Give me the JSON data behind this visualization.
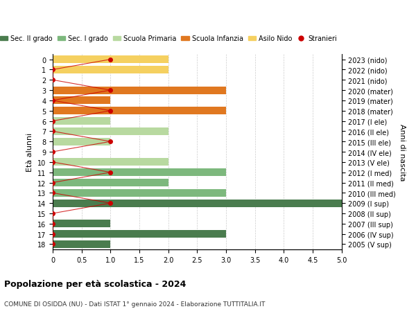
{
  "ages": [
    18,
    17,
    16,
    15,
    14,
    13,
    12,
    11,
    10,
    9,
    8,
    7,
    6,
    5,
    4,
    3,
    2,
    1,
    0
  ],
  "years": [
    "2005 (V sup)",
    "2006 (IV sup)",
    "2007 (III sup)",
    "2008 (II sup)",
    "2009 (I sup)",
    "2010 (III med)",
    "2011 (II med)",
    "2012 (I med)",
    "2013 (V ele)",
    "2014 (IV ele)",
    "2015 (III ele)",
    "2016 (II ele)",
    "2017 (I ele)",
    "2018 (mater)",
    "2019 (mater)",
    "2020 (mater)",
    "2021 (nido)",
    "2022 (nido)",
    "2023 (nido)"
  ],
  "bar_values": [
    1,
    3,
    1,
    0,
    5,
    3,
    2,
    3,
    2,
    0,
    1,
    2,
    1,
    3,
    1,
    3,
    0,
    2,
    2
  ],
  "bar_colors": [
    "#4a7c4e",
    "#4a7c4e",
    "#4a7c4e",
    "#4a7c4e",
    "#4a7c4e",
    "#7db87d",
    "#7db87d",
    "#7db87d",
    "#b8d9a0",
    "#b8d9a0",
    "#b8d9a0",
    "#b8d9a0",
    "#b8d9a0",
    "#e07820",
    "#e07820",
    "#e07820",
    "#f5d060",
    "#f5d060",
    "#f5d060"
  ],
  "stranieri_x": [
    0,
    0,
    0,
    0,
    1,
    0,
    0,
    1,
    0,
    0,
    1,
    0,
    0,
    1,
    0,
    1,
    0,
    0,
    1
  ],
  "legend_labels": [
    "Sec. II grado",
    "Sec. I grado",
    "Scuola Primaria",
    "Scuola Infanzia",
    "Asilo Nido",
    "Stranieri"
  ],
  "legend_colors": [
    "#4a7c4e",
    "#7db87d",
    "#b8d9a0",
    "#e07820",
    "#f5d060",
    "#cc0000"
  ],
  "ylabel_left": "Età alunni",
  "ylabel_right": "Anni di nascita",
  "xlim": [
    0,
    5.0
  ],
  "xticks": [
    0,
    0.5,
    1.0,
    1.5,
    2.0,
    2.5,
    3.0,
    3.5,
    4.0,
    4.5,
    5.0
  ],
  "title": "Popolazione per età scolastica - 2024",
  "subtitle": "COMUNE DI OSIDDA (NU) - Dati ISTAT 1° gennaio 2024 - Elaborazione TUTTITALIA.IT",
  "stranieri_line_color": "#cc0000",
  "stranieri_dot_color": "#cc0000",
  "background_color": "#ffffff",
  "grid_color": "#cccccc"
}
